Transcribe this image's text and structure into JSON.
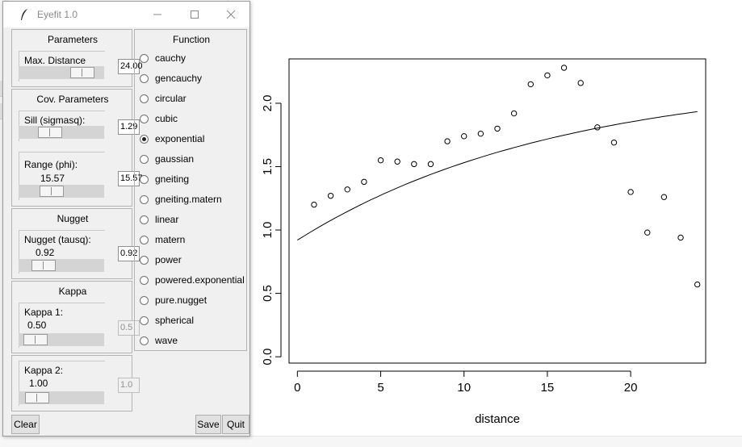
{
  "window": {
    "title": "Eyefit 1.0",
    "min_icon": "minimize-icon",
    "max_icon": "maximize-icon",
    "close_icon": "close-icon",
    "app_icon": "feather-icon"
  },
  "parameters": {
    "header": "Parameters",
    "max_distance": {
      "label": "Max. Distance",
      "entry": "24.00",
      "level": 0.86
    }
  },
  "cov_parameters": {
    "header": "Cov. Parameters",
    "sill": {
      "label": "Sill (sigmasq):",
      "entry": "1.29",
      "level": 0.3
    },
    "range": {
      "label": "Range (phi):",
      "value": "15.57",
      "entry": "15.57",
      "level": 0.34
    }
  },
  "nugget": {
    "header": "Nugget",
    "nugget": {
      "label": "Nugget (tausq):",
      "value": "0.92",
      "entry": "0.92",
      "level": 0.19
    }
  },
  "kappa": {
    "header": "Kappa",
    "kappa1": {
      "label": "Kappa 1:",
      "value": "0.50",
      "entry": "0.5",
      "level": 0.05
    },
    "kappa2": {
      "label": "Kappa 2:",
      "value": "1.00",
      "entry": "1.0",
      "level": 0.08
    }
  },
  "function": {
    "header": "Function",
    "selected": "exponential",
    "options": [
      "cauchy",
      "gencauchy",
      "circular",
      "cubic",
      "exponential",
      "gaussian",
      "gneiting",
      "gneiting.matern",
      "linear",
      "matern",
      "power",
      "powered.exponential",
      "pure.nugget",
      "spherical",
      "wave"
    ]
  },
  "buttons": {
    "clear": "Clear",
    "save": "Save",
    "quit": "Quit"
  },
  "chart_data": {
    "type": "scatter",
    "xlabel": "distance",
    "ylabel": "",
    "xlim": [
      -0.5,
      24.5
    ],
    "ylim": [
      -0.05,
      2.35
    ],
    "xticks": [
      "0",
      "5",
      "10",
      "15",
      "20"
    ],
    "yticks": [
      "0.0",
      "0.5",
      "1.0",
      "1.5",
      "2.0"
    ],
    "points": {
      "x": [
        1,
        2,
        3,
        4,
        5,
        6,
        7,
        8,
        9,
        10,
        11,
        12,
        13,
        14,
        15,
        16,
        17,
        18,
        19,
        20,
        21,
        22,
        23,
        24
      ],
      "y": [
        1.2,
        1.27,
        1.32,
        1.38,
        1.55,
        1.54,
        1.52,
        1.52,
        1.7,
        1.74,
        1.76,
        1.8,
        1.92,
        2.15,
        2.22,
        2.28,
        2.16,
        1.81,
        1.69,
        1.3,
        0.98,
        1.26,
        0.94,
        0.57
      ]
    },
    "fit": {
      "model": "exponential",
      "sill": 1.29,
      "phi": 15.57,
      "nugget": 0.92,
      "x_from": 0,
      "x_to": 24
    },
    "grid": false
  }
}
